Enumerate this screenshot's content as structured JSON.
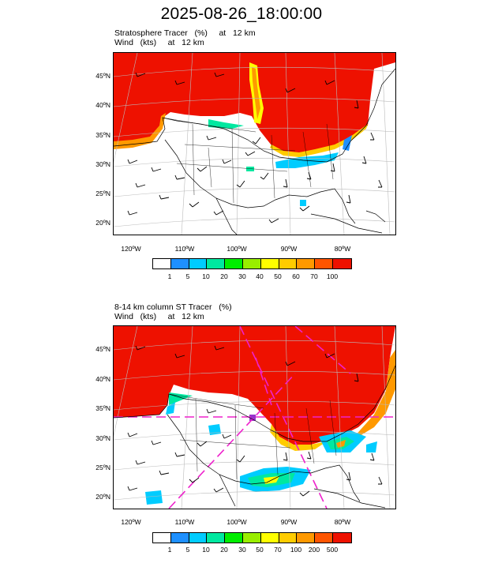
{
  "title": "2025-08-26_18:00:00",
  "panels": [
    {
      "line1": "Stratosphere Tracer   (%)     at   12 km",
      "line2": "Wind   (kts)     at   12 km",
      "lat_labels": [
        "45ºN",
        "40ºN",
        "35ºN",
        "30ºN",
        "25ºN",
        "20ºN"
      ],
      "lon_labels": [
        "120ºW",
        "110ºW",
        "100ºW",
        "90ºW",
        "80ºW"
      ],
      "colorbar_labels": [
        "1",
        "5",
        "10",
        "20",
        "30",
        "40",
        "50",
        "60",
        "70",
        "100"
      ],
      "colorbar_colors": [
        "#ffffff",
        "#1e90ff",
        "#00ccff",
        "#00e8a0",
        "#00ee00",
        "#99ee00",
        "#ffff00",
        "#ffcc00",
        "#ff9900",
        "#ff5500",
        "#ee1100"
      ]
    },
    {
      "line1": "8-14 km column ST Tracer   (%)",
      "line2": "Wind   (kts)     at   12 km",
      "lat_labels": [
        "45ºN",
        "40ºN",
        "35ºN",
        "30ºN",
        "25ºN",
        "20ºN"
      ],
      "lon_labels": [
        "120ºW",
        "110ºW",
        "100ºW",
        "90ºW",
        "80ºW"
      ],
      "colorbar_labels": [
        "1",
        "5",
        "10",
        "20",
        "30",
        "50",
        "70",
        "100",
        "200",
        "500"
      ],
      "colorbar_colors": [
        "#ffffff",
        "#1e90ff",
        "#00ccff",
        "#00e8a0",
        "#00ee00",
        "#99ee00",
        "#ffff00",
        "#ffcc00",
        "#ff9900",
        "#ff5500",
        "#ee1100"
      ]
    }
  ]
}
